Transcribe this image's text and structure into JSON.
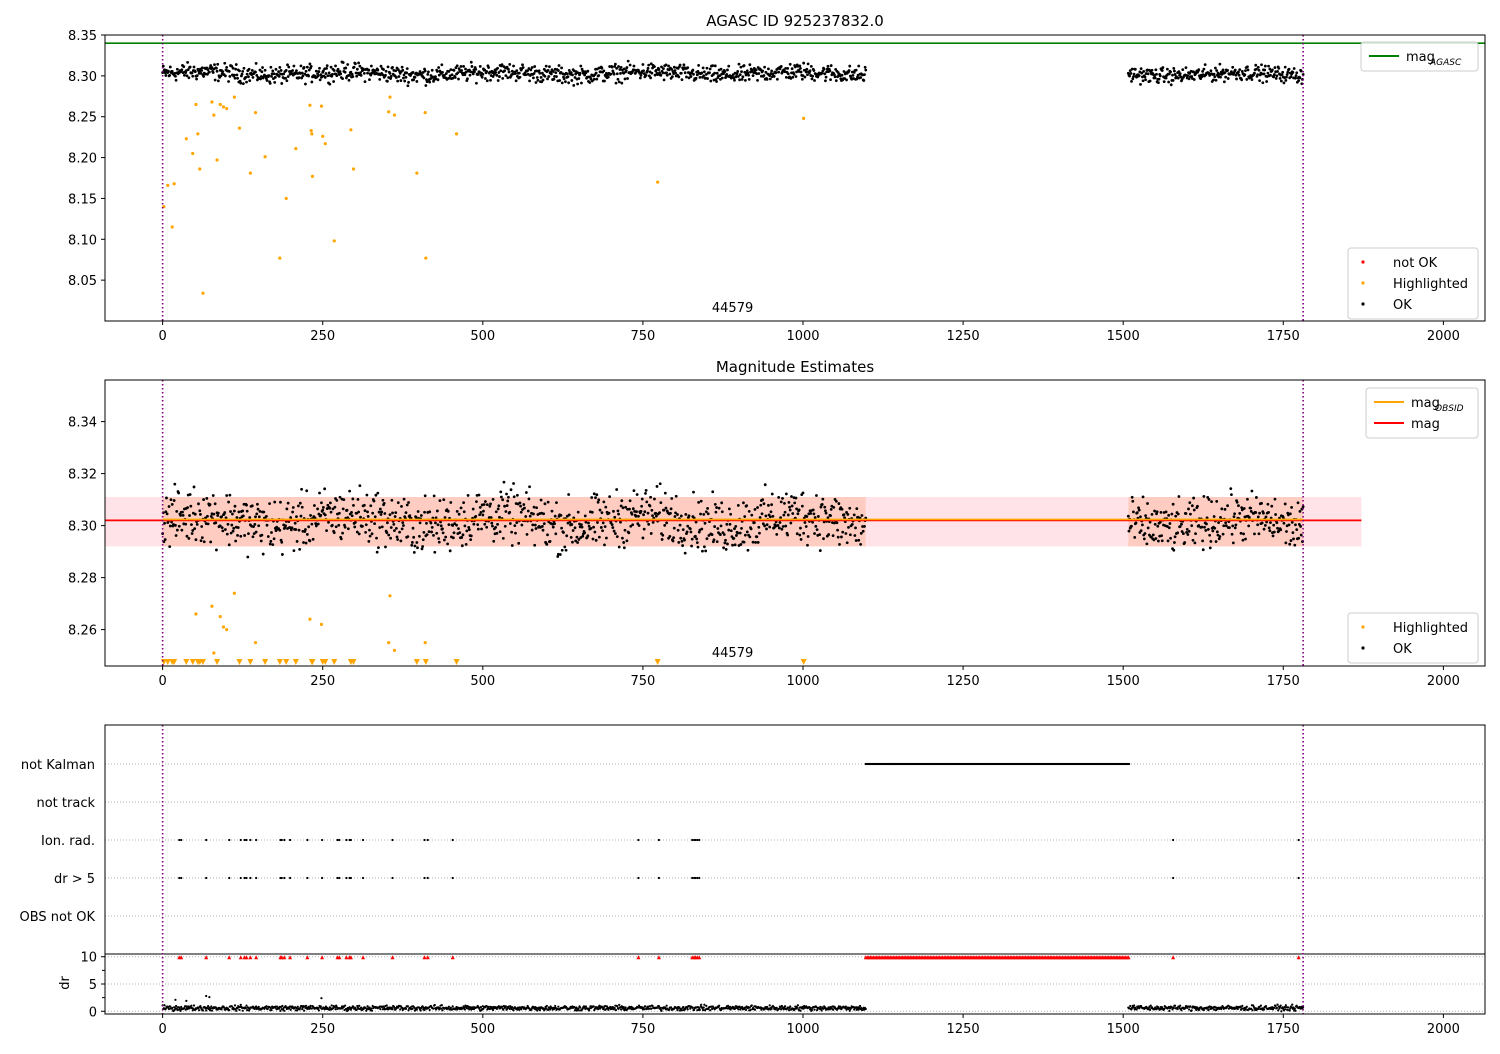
{
  "chart_data": [
    {
      "type": "scatter",
      "title": "AGASC ID 925237832.0",
      "xlim": [
        -90,
        2065
      ],
      "ylim": [
        8.0,
        8.35
      ],
      "x_ticks": [
        0,
        250,
        500,
        750,
        1000,
        1250,
        1500,
        1750,
        2000
      ],
      "y_ticks": [
        8.05,
        8.1,
        8.15,
        8.2,
        8.25,
        8.3,
        8.35
      ],
      "y_tick_labels": [
        "8.05",
        "8.10",
        "8.15",
        "8.20",
        "8.25",
        "8.30",
        "8.35"
      ],
      "obsid_label": "44579",
      "obsid_label_x": 890,
      "obs_boundaries": [
        0,
        1781
      ],
      "hlines": [
        {
          "name": "mag_AGASC",
          "y": 8.34,
          "color": "#008000"
        }
      ],
      "ok_segments": [
        {
          "x_start": 0,
          "x_end": 1098,
          "center": 8.303,
          "spread": 0.009
        },
        {
          "x_start": 1508,
          "x_end": 1781,
          "center": 8.302,
          "spread": 0.008
        }
      ],
      "highlighted_points": [
        {
          "x": 2,
          "y": 8.14
        },
        {
          "x": 8,
          "y": 8.166
        },
        {
          "x": 15,
          "y": 8.115
        },
        {
          "x": 18,
          "y": 8.168
        },
        {
          "x": 37,
          "y": 8.223
        },
        {
          "x": 47,
          "y": 8.205
        },
        {
          "x": 52,
          "y": 8.265
        },
        {
          "x": 55,
          "y": 8.229
        },
        {
          "x": 58,
          "y": 8.186
        },
        {
          "x": 63,
          "y": 8.034
        },
        {
          "x": 77,
          "y": 8.268
        },
        {
          "x": 80,
          "y": 8.252
        },
        {
          "x": 85,
          "y": 8.197
        },
        {
          "x": 90,
          "y": 8.265
        },
        {
          "x": 95,
          "y": 8.262
        },
        {
          "x": 100,
          "y": 8.26
        },
        {
          "x": 112,
          "y": 8.274
        },
        {
          "x": 120,
          "y": 8.236
        },
        {
          "x": 137,
          "y": 8.181
        },
        {
          "x": 145,
          "y": 8.255
        },
        {
          "x": 160,
          "y": 8.201
        },
        {
          "x": 183,
          "y": 8.077
        },
        {
          "x": 193,
          "y": 8.15
        },
        {
          "x": 208,
          "y": 8.211
        },
        {
          "x": 230,
          "y": 8.264
        },
        {
          "x": 232,
          "y": 8.233
        },
        {
          "x": 233,
          "y": 8.229
        },
        {
          "x": 234,
          "y": 8.177
        },
        {
          "x": 248,
          "y": 8.263
        },
        {
          "x": 250,
          "y": 8.226
        },
        {
          "x": 254,
          "y": 8.217
        },
        {
          "x": 268,
          "y": 8.098
        },
        {
          "x": 294,
          "y": 8.234
        },
        {
          "x": 298,
          "y": 8.186
        },
        {
          "x": 353,
          "y": 8.256
        },
        {
          "x": 355,
          "y": 8.274
        },
        {
          "x": 362,
          "y": 8.252
        },
        {
          "x": 397,
          "y": 8.181
        },
        {
          "x": 410,
          "y": 8.255
        },
        {
          "x": 411,
          "y": 8.077
        },
        {
          "x": 459,
          "y": 8.229
        },
        {
          "x": 773,
          "y": 8.17
        },
        {
          "x": 1001,
          "y": 8.248
        }
      ],
      "legends": [
        {
          "position": "upper-right",
          "entries": [
            {
              "label": "mag",
              "subscript": "AGASC",
              "color": "#008000",
              "kind": "line"
            }
          ]
        },
        {
          "position": "lower-right",
          "entries": [
            {
              "label": "not OK",
              "color": "#ff0000",
              "kind": "point"
            },
            {
              "label": "Highlighted",
              "color": "#ffa500",
              "kind": "point"
            },
            {
              "label": "OK",
              "color": "#000000",
              "kind": "point"
            }
          ]
        }
      ]
    },
    {
      "type": "scatter",
      "title": "Magnitude Estimates",
      "xlim": [
        -90,
        2065
      ],
      "ylim": [
        8.246,
        8.356
      ],
      "x_ticks": [
        0,
        250,
        500,
        750,
        1000,
        1250,
        1500,
        1750,
        2000
      ],
      "y_ticks": [
        8.26,
        8.28,
        8.3,
        8.32,
        8.34
      ],
      "y_tick_labels": [
        "8.26",
        "8.28",
        "8.30",
        "8.32",
        "8.34"
      ],
      "obsid_label": "44579",
      "obsid_label_x": 890,
      "obs_boundaries": [
        0,
        1781
      ],
      "mag_band": {
        "x": [
          -90,
          1872
        ],
        "y_low": 8.292,
        "y_high": 8.311,
        "color": "#ffc0cb"
      },
      "mag_obsid_band": {
        "x": [
          0,
          1098
        ],
        "y_low": 8.292,
        "y_high": 8.311,
        "color": "#ffa07a"
      },
      "mag_obsid_band_2": {
        "x": [
          1508,
          1781
        ],
        "y_low": 8.292,
        "y_high": 8.311,
        "color": "#ffa07a"
      },
      "mag_line": {
        "x": [
          -90,
          1872
        ],
        "y": 8.302,
        "color": "#ff0000"
      },
      "mag_obsid_line": {
        "x": [
          0,
          1781
        ],
        "y": 8.302,
        "color": "#ffa500"
      },
      "ok_segments": [
        {
          "x_start": 0,
          "x_end": 1098,
          "center": 8.302,
          "spread": 0.009
        },
        {
          "x_start": 1508,
          "x_end": 1781,
          "center": 8.301,
          "spread": 0.008
        }
      ],
      "highlighted_points": [
        {
          "x": 52,
          "y": 8.266
        },
        {
          "x": 77,
          "y": 8.269
        },
        {
          "x": 80,
          "y": 8.251
        },
        {
          "x": 90,
          "y": 8.265
        },
        {
          "x": 95,
          "y": 8.261
        },
        {
          "x": 100,
          "y": 8.26
        },
        {
          "x": 112,
          "y": 8.274
        },
        {
          "x": 145,
          "y": 8.255
        },
        {
          "x": 230,
          "y": 8.264
        },
        {
          "x": 248,
          "y": 8.262
        },
        {
          "x": 353,
          "y": 8.255
        },
        {
          "x": 355,
          "y": 8.273
        },
        {
          "x": 362,
          "y": 8.252
        },
        {
          "x": 410,
          "y": 8.255
        }
      ],
      "highlighted_clipped_x": [
        2,
        8,
        15,
        18,
        37,
        47,
        55,
        58,
        63,
        85,
        120,
        137,
        160,
        183,
        193,
        208,
        233,
        234,
        250,
        254,
        268,
        294,
        298,
        397,
        411,
        459,
        773,
        1001
      ],
      "legends": [
        {
          "position": "upper-right",
          "entries": [
            {
              "label": "mag",
              "subscript": "OBSID",
              "color": "#ffa500",
              "kind": "line"
            },
            {
              "label": "mag",
              "color": "#ff0000",
              "kind": "line"
            }
          ]
        },
        {
          "position": "lower-right",
          "entries": [
            {
              "label": "Highlighted",
              "color": "#ffa500",
              "kind": "point"
            },
            {
              "label": "OK",
              "color": "#000000",
              "kind": "point"
            }
          ]
        }
      ]
    },
    {
      "type": "scatter",
      "title": "",
      "xlim": [
        -90,
        2065
      ],
      "obs_boundaries": [
        0,
        1781
      ],
      "flag_rows": [
        "not Kalman",
        "not track",
        "Ion. rad.",
        "dr > 5",
        "OBS not OK"
      ],
      "flag_segments": [
        {
          "row": "not Kalman",
          "x_start": 1098,
          "x_end": 1510
        }
      ],
      "flag_points_x": [
        26,
        29,
        68,
        104,
        122,
        128,
        131,
        137,
        146,
        184,
        186,
        190,
        199,
        226,
        249,
        273,
        276,
        287,
        292,
        294,
        313,
        359,
        409,
        414,
        453,
        743,
        775,
        827,
        830,
        832,
        835,
        838,
        1578,
        1774
      ],
      "flag_points_rows": [
        "Ion. rad.",
        "dr > 5"
      ],
      "dr_panel": {
        "ylabel": "dr",
        "ylim": [
          -0.5,
          10.5
        ],
        "y_ticks": [
          0,
          5,
          10
        ],
        "y_tick_labels": [
          "0",
          "5",
          "10"
        ],
        "x_ticks": [
          0,
          250,
          500,
          750,
          1000,
          1250,
          1500,
          1750,
          2000
        ],
        "dr_limit": 10,
        "ok_segments": [
          {
            "x_start": 0,
            "x_end": 1098,
            "center": 0.6,
            "spread": 0.4
          },
          {
            "x_start": 1508,
            "x_end": 1781,
            "center": 0.6,
            "spread": 0.4
          }
        ],
        "outlier_points": [
          {
            "x": 20,
            "y": 2.1
          },
          {
            "x": 68,
            "y": 2.8
          },
          {
            "x": 73,
            "y": 2.6
          },
          {
            "x": 248,
            "y": 2.4
          },
          {
            "x": 37,
            "y": 1.9
          }
        ],
        "not_ok_x": [
          26,
          29,
          68,
          104,
          122,
          128,
          131,
          137,
          146,
          184,
          186,
          190,
          199,
          226,
          249,
          273,
          276,
          287,
          292,
          294,
          313,
          359,
          409,
          414,
          453,
          743,
          775,
          827,
          830,
          832,
          835,
          838,
          1578,
          1774
        ],
        "not_ok_segment": {
          "x_start": 1098,
          "x_end": 1510,
          "y": 9.9
        }
      }
    }
  ],
  "colors": {
    "ok": "#000000",
    "highlighted": "#ffa500",
    "not_ok": "#ff0000",
    "mag_agasc": "#008000",
    "mag": "#ff0000",
    "mag_obsid": "#ffa500",
    "boundary": "#800080"
  }
}
